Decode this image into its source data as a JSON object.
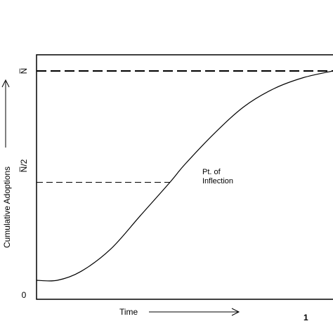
{
  "chart_data": {
    "type": "line",
    "title": "",
    "xlabel": "Time",
    "ylabel": "Cumulative Adoptions",
    "xlim": [
      0,
      1
    ],
    "ylim": [
      0,
      1
    ],
    "y_ticks": [
      {
        "value": 0,
        "label": "0"
      },
      {
        "value": 0.5,
        "label": "N̅/2"
      },
      {
        "value": 1,
        "label": "N̅"
      }
    ],
    "series": [
      {
        "x": [
          0,
          0.07,
          0.15,
          0.25,
          0.35,
          0.45,
          0.5,
          0.6,
          0.7,
          0.8,
          0.9,
          1.0
        ],
        "values": [
          0.06,
          0.06,
          0.1,
          0.2,
          0.35,
          0.5,
          0.58,
          0.72,
          0.84,
          0.92,
          0.97,
          1.0
        ]
      }
    ],
    "reference_lines": [
      {
        "axis": "y",
        "value": 1,
        "style": "dashed"
      },
      {
        "axis": "y",
        "value": 0.5,
        "style": "dashed",
        "extent": "to-curve"
      }
    ],
    "annotations": [
      {
        "text": "Pt. of\nInflection",
        "x": 0.5,
        "y": 0.5
      }
    ],
    "grid": false,
    "corner_mark": "1"
  }
}
